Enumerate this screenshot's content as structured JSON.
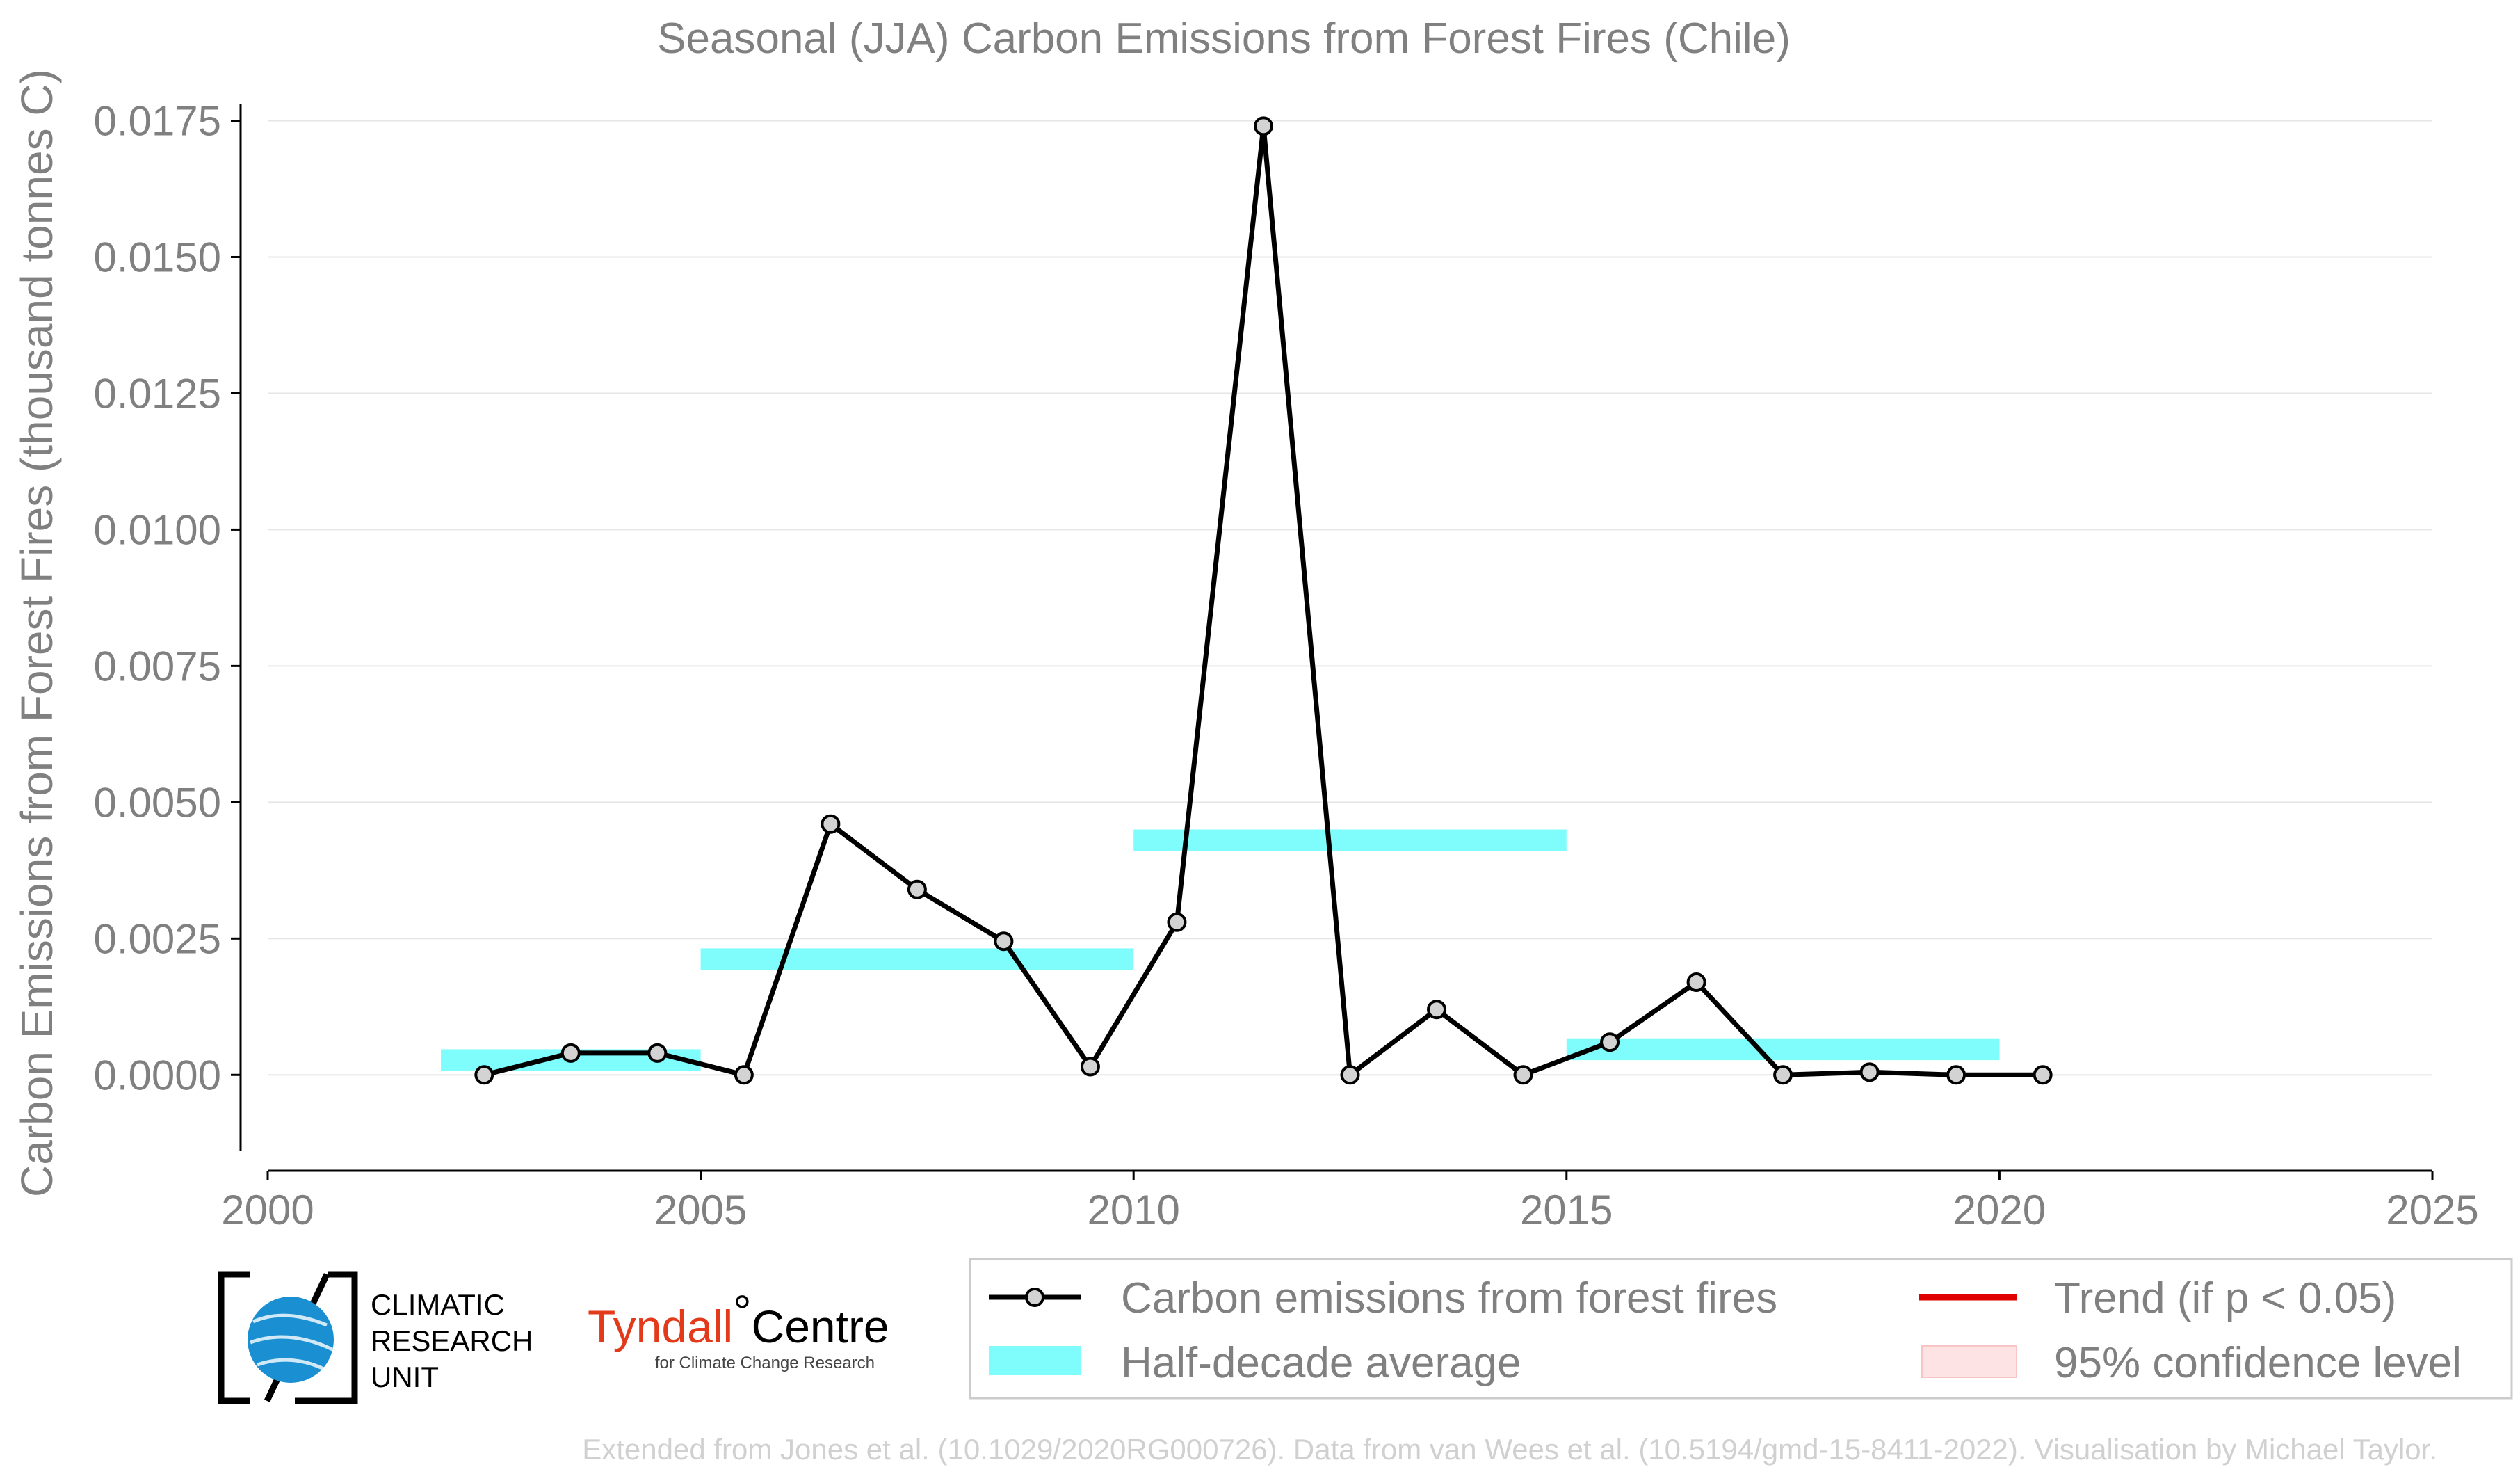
{
  "chart_data": {
    "type": "line",
    "title": "Seasonal (JJA) Carbon Emissions from Forest Fires (Chile)",
    "xlabel": "",
    "ylabel": "Carbon Emissions from Forest Fires (thousand tonnes C)",
    "xlim": [
      2000,
      2025
    ],
    "ylim": [
      -0.0014,
      0.0178
    ],
    "x_ticks": [
      2000,
      2005,
      2010,
      2015,
      2020,
      2025
    ],
    "y_ticks": [
      0.0,
      0.0025,
      0.005,
      0.0075,
      0.01,
      0.0125,
      0.015,
      0.0175
    ],
    "y_tick_labels": [
      "0.0000",
      "0.0025",
      "0.0050",
      "0.0075",
      "0.0100",
      "0.0125",
      "0.0150",
      "0.0175"
    ],
    "grid": "horizontal",
    "series": [
      {
        "name": "Carbon emissions from forest fires",
        "color": "#000000",
        "marker_fill": "#d3d3d3",
        "x": [
          2002.5,
          2003.5,
          2004.5,
          2005.5,
          2006.5,
          2007.5,
          2008.5,
          2009.5,
          2010.5,
          2011.5,
          2012.5,
          2013.5,
          2014.5,
          2015.5,
          2016.5,
          2017.5,
          2018.5,
          2019.5,
          2020.5
        ],
        "y": [
          0.0,
          0.0004,
          0.0004,
          0.0,
          0.0046,
          0.0034,
          0.00245,
          0.00015,
          0.0028,
          0.0174,
          0.0,
          0.0012,
          0.0,
          0.0006,
          0.0017,
          0.0,
          5e-05,
          0.0,
          0.0
        ]
      }
    ],
    "half_decade_average": {
      "name": "Half-decade average",
      "color": "#7ffdfd",
      "segments": [
        {
          "x_start": 2002,
          "x_end": 2005,
          "value": 0.00027
        },
        {
          "x_start": 2005,
          "x_end": 2010,
          "value": 0.00212
        },
        {
          "x_start": 2010,
          "x_end": 2015,
          "value": 0.0043
        },
        {
          "x_start": 2015,
          "x_end": 2020,
          "value": 0.00047
        }
      ]
    },
    "legend": {
      "placement": "bottom-right",
      "entries": [
        {
          "label": "Carbon emissions from forest fires",
          "kind": "line-marker",
          "color": "#000000"
        },
        {
          "label": "Trend (if p < 0.05)",
          "kind": "line",
          "color": "#e00000"
        },
        {
          "label": "Half-decade average",
          "kind": "band",
          "color": "#7ffdfd"
        },
        {
          "label": "95% confidence level",
          "kind": "patch",
          "color": "#fde3e3"
        }
      ]
    },
    "footer": "Extended from Jones et al. (10.1029/2020RG000726). Data from van Wees et al. (10.5194/gmd-15-8411-2022). Visualisation by Michael Taylor."
  },
  "logos": {
    "cru_lines": [
      "CLIMATIC",
      "RESEARCH",
      "UNIT"
    ],
    "tyndall_main": "Tyndall",
    "tyndall_degree": "°",
    "tyndall_centre": "Centre",
    "tyndall_sub": "for Climate Change Research"
  }
}
